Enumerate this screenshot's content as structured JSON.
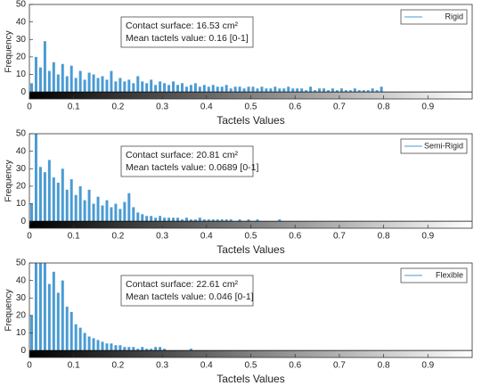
{
  "chart_data": [
    {
      "type": "histogram",
      "xlabel": "Tactels Values",
      "ylabel": "Frequency",
      "annotations": [
        "Contact surface: 16.53 cm²",
        "Mean tactels value: 0.16 [0-1]"
      ],
      "series": [
        {
          "name": "Rigid",
          "color": "#4a9bd4",
          "bins": [
            0,
            0.01,
            0.02,
            0.03,
            0.04,
            0.05,
            0.06,
            0.07,
            0.08,
            0.09,
            0.1,
            0.11,
            0.12,
            0.13,
            0.14,
            0.15,
            0.16,
            0.17,
            0.18,
            0.19,
            0.2,
            0.21,
            0.22,
            0.23,
            0.24,
            0.25,
            0.26,
            0.27,
            0.28,
            0.29,
            0.3,
            0.31,
            0.32,
            0.33,
            0.34,
            0.35,
            0.36,
            0.37,
            0.38,
            0.39,
            0.4,
            0.41,
            0.42,
            0.43,
            0.44,
            0.45,
            0.46,
            0.47,
            0.48,
            0.49,
            0.5,
            0.51,
            0.52,
            0.53,
            0.54,
            0.55,
            0.56,
            0.57,
            0.58,
            0.59,
            0.6,
            0.61,
            0.62,
            0.63,
            0.64,
            0.65,
            0.66,
            0.67,
            0.68,
            0.69,
            0.7,
            0.71,
            0.72,
            0.73,
            0.74,
            0.75,
            0.76,
            0.77,
            0.78,
            0.79,
            0.8,
            0.81,
            0.82,
            0.83,
            0.84,
            0.85,
            0.86,
            0.87,
            0.88,
            0.89,
            0.9,
            0.91,
            0.92,
            0.93,
            0.94,
            0.95,
            0.96,
            0.97,
            0.98,
            0.99,
            1
          ],
          "values": [
            5,
            20,
            14,
            29,
            12,
            17,
            10,
            16,
            9,
            15,
            8,
            12,
            7,
            11,
            10,
            8,
            9,
            7,
            12,
            6,
            8,
            6,
            7,
            5,
            9,
            6,
            5,
            7,
            4,
            6,
            5,
            4,
            6,
            4,
            5,
            3,
            4,
            5,
            3,
            4,
            3,
            4,
            3,
            3,
            4,
            2,
            3,
            3,
            2,
            3,
            3,
            2,
            3,
            2,
            2,
            3,
            2,
            2,
            3,
            2,
            2,
            2,
            1,
            3,
            1,
            2,
            2,
            1,
            2,
            1,
            2,
            1,
            1,
            2,
            1,
            1,
            1,
            2,
            1,
            3,
            0,
            0,
            0,
            0,
            0,
            0,
            0,
            0,
            0,
            0,
            0,
            0,
            0,
            0,
            0,
            0,
            0,
            0,
            0,
            0
          ]
        }
      ],
      "xlim": [
        0,
        1
      ],
      "xticks": [
        0,
        0.1,
        0.2,
        0.3,
        0.4,
        0.5,
        0.6,
        0.7,
        0.8,
        0.9
      ],
      "ylim": [
        -4,
        50
      ],
      "yticks": [
        0,
        10,
        20,
        30,
        40,
        50
      ],
      "legend": "upper right"
    },
    {
      "type": "histogram",
      "xlabel": "Tactels Values",
      "ylabel": "Frequency",
      "annotations": [
        "Contact surface: 20.81 cm²",
        "Mean tactels value: 0.0689 [0-1]"
      ],
      "series": [
        {
          "name": "Semi-Rigid",
          "color": "#4a9bd4",
          "bins": [
            0,
            0.01,
            0.02,
            0.03,
            0.04,
            0.05,
            0.06,
            0.07,
            0.08,
            0.09,
            0.1,
            0.11,
            0.12,
            0.13,
            0.14,
            0.15,
            0.16,
            0.17,
            0.18,
            0.19,
            0.2,
            0.21,
            0.22,
            0.23,
            0.24,
            0.25,
            0.26,
            0.27,
            0.28,
            0.29,
            0.3,
            0.31,
            0.32,
            0.33,
            0.34,
            0.35,
            0.36,
            0.37,
            0.38,
            0.39,
            0.4,
            0.41,
            0.42,
            0.43,
            0.44,
            0.45,
            0.46,
            0.47,
            0.48,
            0.49,
            0.5,
            0.51,
            0.52,
            0.53,
            0.54,
            0.55,
            0.56,
            0.57,
            0.58,
            0.59,
            0.6,
            0.61,
            0.62,
            0.63,
            0.64,
            0.65,
            0.66,
            0.67,
            0.68,
            0.69,
            0.7,
            0.71,
            0.72,
            0.73,
            0.74,
            0.75,
            0.76,
            0.77,
            0.78,
            0.79,
            0.8,
            0.81,
            0.82,
            0.83,
            0.84,
            0.85,
            0.86,
            0.87,
            0.88,
            0.89,
            0.9,
            0.91,
            0.92,
            0.93,
            0.94,
            0.95,
            0.96,
            0.97,
            0.98,
            0.99,
            1
          ],
          "values": [
            10,
            50,
            31,
            28,
            35,
            25,
            22,
            30,
            18,
            24,
            15,
            20,
            12,
            18,
            10,
            14,
            9,
            12,
            8,
            10,
            7,
            11,
            16,
            8,
            5,
            4,
            3,
            3,
            2,
            3,
            2,
            2,
            2,
            2,
            1,
            2,
            1,
            1,
            2,
            1,
            1,
            1,
            1,
            1,
            1,
            1,
            0,
            1,
            0,
            1,
            0,
            1,
            0,
            0,
            0,
            0,
            1,
            0,
            0,
            0,
            0,
            0,
            0,
            0,
            0,
            0,
            0,
            0,
            0,
            0,
            0,
            0,
            0,
            0,
            0,
            0,
            0,
            0,
            0,
            0,
            0,
            0,
            0,
            0,
            0,
            0,
            0,
            0,
            0,
            0,
            0,
            0,
            0,
            0,
            0,
            0,
            0,
            0,
            0,
            0
          ]
        }
      ],
      "xlim": [
        0,
        1
      ],
      "xticks": [
        0,
        0.1,
        0.2,
        0.3,
        0.4,
        0.5,
        0.6,
        0.7,
        0.8,
        0.9
      ],
      "ylim": [
        -4,
        50
      ],
      "yticks": [
        0,
        10,
        20,
        30,
        40,
        50
      ],
      "legend": "upper right"
    },
    {
      "type": "histogram",
      "xlabel": "Tactels Values",
      "ylabel": "Frequency",
      "annotations": [
        "Contact surface: 22.61 cm²",
        "Mean tactels value: 0.046 [0-1]"
      ],
      "series": [
        {
          "name": "Flexible",
          "color": "#4a9bd4",
          "bins": [
            0,
            0.01,
            0.02,
            0.03,
            0.04,
            0.05,
            0.06,
            0.07,
            0.08,
            0.09,
            0.1,
            0.11,
            0.12,
            0.13,
            0.14,
            0.15,
            0.16,
            0.17,
            0.18,
            0.19,
            0.2,
            0.21,
            0.22,
            0.23,
            0.24,
            0.25,
            0.26,
            0.27,
            0.28,
            0.29,
            0.3,
            0.31,
            0.32,
            0.33,
            0.34,
            0.35,
            0.36,
            0.37,
            0.38,
            0.39,
            0.4,
            0.41,
            0.42,
            0.43,
            0.44,
            0.45,
            0.46,
            0.47,
            0.48,
            0.49,
            0.5,
            0.51,
            0.52,
            0.53,
            0.54,
            0.55,
            0.56,
            0.57,
            0.58,
            0.59,
            0.6,
            0.61,
            0.62,
            0.63,
            0.64,
            0.65,
            0.66,
            0.67,
            0.68,
            0.69,
            0.7,
            0.71,
            0.72,
            0.73,
            0.74,
            0.75,
            0.76,
            0.77,
            0.78,
            0.79,
            0.8,
            0.81,
            0.82,
            0.83,
            0.84,
            0.85,
            0.86,
            0.87,
            0.88,
            0.89,
            0.9,
            0.91,
            0.92,
            0.93,
            0.94,
            0.95,
            0.96,
            0.97,
            0.98,
            0.99,
            1
          ],
          "values": [
            20,
            50,
            50,
            50,
            38,
            45,
            33,
            40,
            25,
            22,
            15,
            13,
            10,
            8,
            7,
            6,
            5,
            4,
            4,
            3,
            3,
            2,
            2,
            2,
            1,
            2,
            1,
            1,
            2,
            2,
            1,
            0,
            0,
            0,
            0,
            0,
            1,
            0,
            0,
            0,
            0,
            0,
            0,
            0,
            0,
            0,
            0,
            0,
            0,
            0,
            0,
            0,
            0,
            0,
            0,
            0,
            0,
            0,
            0,
            0,
            0,
            0,
            0,
            0,
            0,
            0,
            0,
            0,
            0,
            0,
            0,
            0,
            0,
            0,
            0,
            0,
            0,
            0,
            0,
            0,
            0,
            0,
            0,
            0,
            0,
            0,
            0,
            0,
            0,
            0,
            0,
            0,
            0,
            0,
            0,
            0,
            0,
            0,
            0,
            0
          ]
        }
      ],
      "xlim": [
        0,
        1
      ],
      "xticks": [
        0,
        0.1,
        0.2,
        0.3,
        0.4,
        0.5,
        0.6,
        0.7,
        0.8,
        0.9
      ],
      "ylim": [
        -4,
        50
      ],
      "yticks": [
        0,
        10,
        20,
        30,
        40,
        50
      ],
      "legend": "upper right"
    }
  ]
}
